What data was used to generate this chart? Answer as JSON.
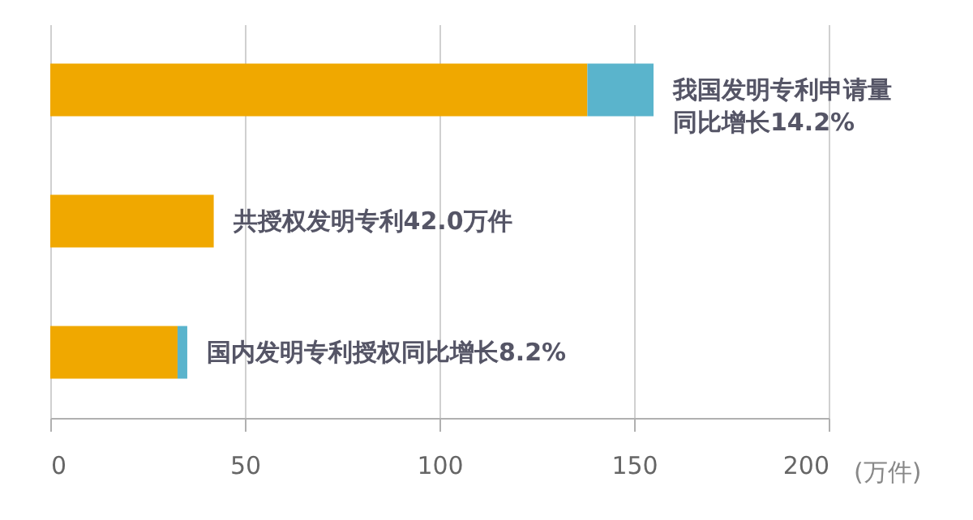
{
  "chart_data": {
    "type": "bar",
    "orientation": "horizontal",
    "stacked": true,
    "categories": [
      null,
      null,
      null
    ],
    "series": [
      {
        "color": "#f0a800",
        "values": [
          138,
          42,
          32.7
        ]
      },
      {
        "color": "#5ab4cc",
        "values": [
          17,
          null,
          2.5
        ]
      }
    ],
    "xlim": [
      0,
      200
    ],
    "xticks": [
      0,
      50,
      100,
      150,
      200
    ],
    "xlabel": "(万件)",
    "grid": "x",
    "annotations": [
      {
        "text": "我国发明专利申请量同比增长14.2%",
        "x": 155
      },
      {
        "text": "共授权发明专利42.0万件",
        "x": 42
      },
      {
        "text": "国内发明专利授权同比增长8.2%",
        "x": 35.2
      }
    ]
  }
}
